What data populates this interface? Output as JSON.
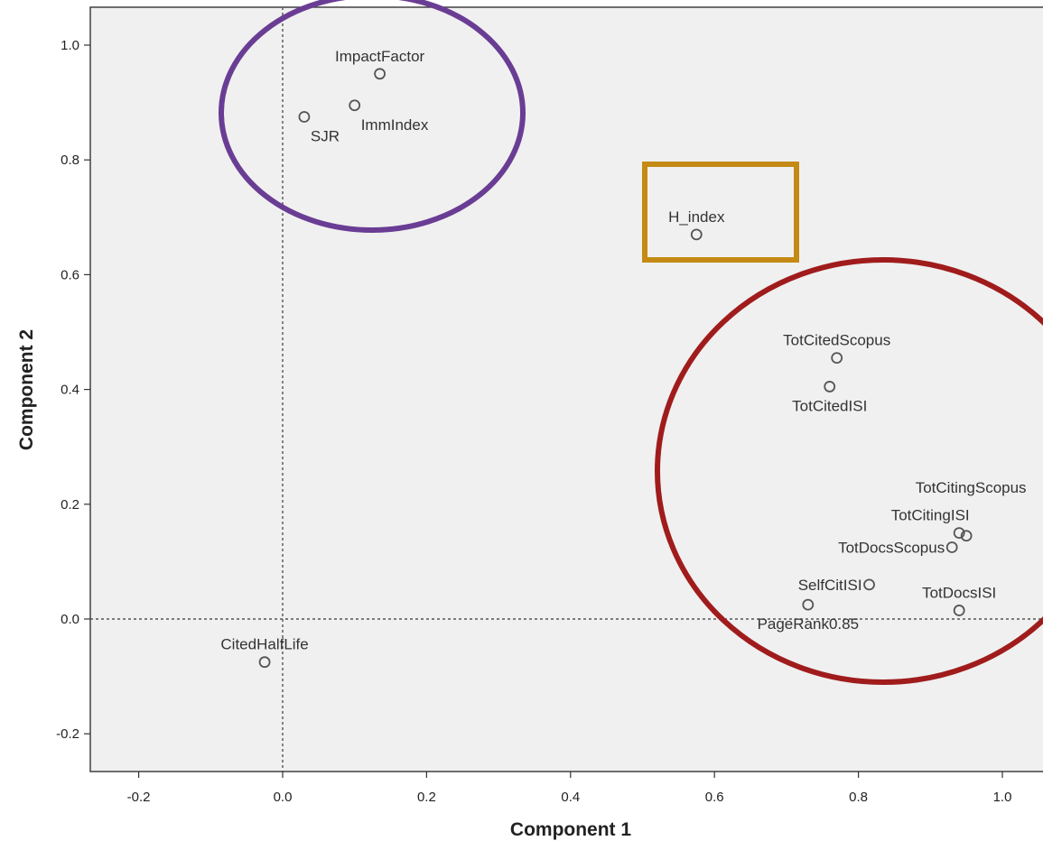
{
  "chart_data": {
    "type": "scatter",
    "title": "",
    "xlabel": "Component 1",
    "ylabel": "Component 2",
    "xlim": [
      -0.33,
      1.32
    ],
    "ylim": [
      -0.265,
      1.065
    ],
    "x_ticks": [
      -0.2,
      0.0,
      0.2,
      0.4,
      0.6,
      0.8,
      1.0
    ],
    "x_tick_labels": [
      "-0.2",
      "0.0",
      "0.2",
      "0.4",
      "0.6",
      "0.8",
      "1.0"
    ],
    "y_ticks": [
      -0.2,
      0.0,
      0.2,
      0.4,
      0.6,
      0.8,
      1.0
    ],
    "y_tick_labels": [
      "-0.2",
      "0.0",
      "0.2",
      "0.4",
      "0.6",
      "0.8",
      "1.0"
    ],
    "reference_lines": {
      "x": 0.0,
      "y": 0.0
    },
    "grid": false,
    "points": [
      {
        "label": "ImpactFactor",
        "x": 0.135,
        "y": 0.95,
        "label_pos": "above"
      },
      {
        "label": "SJR",
        "x": 0.03,
        "y": 0.875,
        "label_pos": "below-right"
      },
      {
        "label": "ImmIndex",
        "x": 0.1,
        "y": 0.895,
        "label_pos": "below-right"
      },
      {
        "label": "H_index",
        "x": 0.575,
        "y": 0.67,
        "label_pos": "above"
      },
      {
        "label": "TotCitedScopus",
        "x": 0.77,
        "y": 0.455,
        "label_pos": "above"
      },
      {
        "label": "TotCitedISI",
        "x": 0.76,
        "y": 0.405,
        "label_pos": "below"
      },
      {
        "label": "TotCitingScopus",
        "x": 0.95,
        "y": 0.145,
        "label_pos": "above-far"
      },
      {
        "label": "TotCitingISI",
        "x": 0.94,
        "y": 0.15,
        "label_pos": "above-left"
      },
      {
        "label": "TotDocsScopus",
        "x": 0.93,
        "y": 0.125,
        "label_pos": "left"
      },
      {
        "label": "SelfCitISI",
        "x": 0.815,
        "y": 0.06,
        "label_pos": "left"
      },
      {
        "label": "PageRank0.85",
        "x": 0.73,
        "y": 0.025,
        "label_pos": "below"
      },
      {
        "label": "TotDocsISI",
        "x": 0.94,
        "y": 0.015,
        "label_pos": "above"
      },
      {
        "label": "CitedHalfLife",
        "x": -0.025,
        "y": -0.075,
        "label_pos": "above"
      }
    ],
    "annotations": [
      {
        "shape": "ellipse",
        "color": "#6a3d94",
        "encloses": [
          "ImpactFactor",
          "SJR",
          "ImmIndex"
        ]
      },
      {
        "shape": "rectangle",
        "color": "#c48a14",
        "encloses": [
          "H_index"
        ]
      },
      {
        "shape": "ellipse",
        "color": "#a01c1c",
        "encloses": [
          "TotCitedScopus",
          "TotCitedISI",
          "TotCitingScopus",
          "TotCitingISI",
          "TotDocsScopus",
          "SelfCitISI",
          "PageRank0.85",
          "TotDocsISI"
        ]
      }
    ],
    "colors": {
      "plot_background": "#f0f0f0",
      "marker": "#555555"
    }
  }
}
